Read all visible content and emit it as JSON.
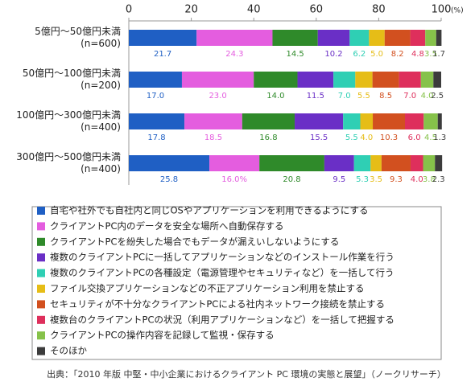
{
  "chart_data": {
    "type": "stacked-bar-horizontal",
    "categories": [
      "5億円～50億円未満\n(n=600)",
      "50億円～100億円未満\n(n=200)",
      "100億円～300億円未満\n(n=400)",
      "300億円～500億円未満\n(n=400)"
    ],
    "xlim": [
      0,
      100
    ],
    "xticks": [
      0,
      20,
      40,
      60,
      80,
      100
    ],
    "xlabel": "(%)",
    "series": [
      {
        "name": "自宅や社外でも自社内と同じOSやアプリケーションを利用できるようにする",
        "color": "#1f5fc4",
        "values": [
          21.7,
          17,
          17.8,
          25.8
        ],
        "value_labels": [
          "21.7",
          "17.0",
          "17.8",
          "25.8"
        ]
      },
      {
        "name": "クライアントPC内のデータを安全な場所へ自動保存する",
        "color": "#e45ddf",
        "values": [
          24.3,
          23,
          18.5,
          16
        ],
        "value_labels": [
          "24.3",
          "23.0",
          "18.5",
          "16.0%"
        ]
      },
      {
        "name": "クライアントPCを紛失した場合でもデータが漏えいしないようにする",
        "color": "#2f8a2a",
        "values": [
          14.5,
          14,
          16.8,
          20.8
        ],
        "value_labels": [
          "14.5",
          "14.0",
          "16.8",
          "20.8"
        ]
      },
      {
        "name": "複数のクライアントPCに一括してアプリケーションなどのインストール作業を行う",
        "color": "#6a2fc6",
        "values": [
          10.2,
          11.5,
          15.5,
          9.5
        ],
        "value_labels": [
          "10.2",
          "11.5",
          "15.5",
          "9.5"
        ]
      },
      {
        "name": "複数のクライアントPCの各種設定（電源管理やセキュリティなど）を一括して行う",
        "color": "#2fcfb4",
        "values": [
          6.2,
          7,
          5.5,
          5.3
        ],
        "value_labels": [
          "6.2",
          "7.0",
          "5.5",
          "5.3"
        ]
      },
      {
        "name": "ファイル交換アプリケーションなどの不正アプリケーション利用を禁止する",
        "color": "#e6bd17",
        "values": [
          5,
          5.5,
          4,
          3.5
        ],
        "value_labels": [
          "5.0",
          "5.5",
          "4.0",
          "3.5"
        ]
      },
      {
        "name": "セキュリティが不十分なクライアントPCによる社内ネットワーク接続を禁止する",
        "color": "#d2501f",
        "values": [
          8.2,
          8.5,
          10.3,
          9.3
        ],
        "value_labels": [
          "8.2",
          "8.5",
          "10.3",
          "9.3"
        ]
      },
      {
        "name": "複数台のクライアントPCの状況（利用アプリケーションなど）を一括して把握する",
        "color": "#de2f5c",
        "values": [
          4.8,
          7,
          6,
          4
        ],
        "value_labels": [
          "4.8",
          "7.0",
          "6.0",
          "4.0"
        ]
      },
      {
        "name": "クライアントPCの操作内容を記録して監視・保存する",
        "color": "#86c24a",
        "values": [
          3.5,
          4,
          4.5,
          3.8
        ],
        "value_labels": [
          "3.5",
          "4.0",
          "4.5",
          "3.8"
        ]
      },
      {
        "name": "そのほか",
        "color": "#3c3c3c",
        "values": [
          1.7,
          2.5,
          1.3,
          2.3
        ],
        "value_labels": [
          "1.7",
          "2.5",
          "1.3",
          "2.3"
        ]
      }
    ],
    "source": "出典：「2010 年版 中堅・中小企業におけるクライアント PC 環境の実態と展望」（ノークリサーチ）"
  }
}
